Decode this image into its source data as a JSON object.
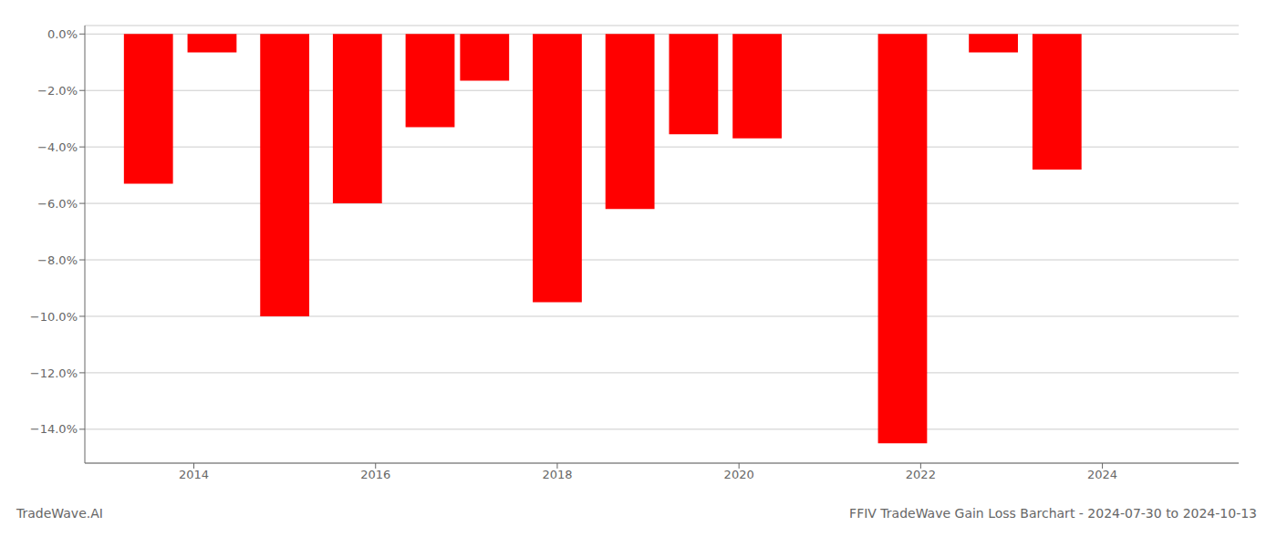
{
  "chart_data": {
    "type": "bar",
    "title": "FFIV TradeWave Gain Loss Barchart - 2024-07-30 to 2024-10-13",
    "annotations": [
      "TradeWave.AI"
    ],
    "x": [
      2013.5,
      2014.2,
      2015.0,
      2015.8,
      2016.6,
      2017.2,
      2018.0,
      2018.8,
      2019.5,
      2020.2,
      2021.8,
      2022.8,
      2023.5
    ],
    "values": [
      -5.3,
      -0.65,
      -10.0,
      -6.0,
      -3.3,
      -1.65,
      -9.5,
      -6.2,
      -3.55,
      -3.7,
      -14.5,
      -0.65,
      -4.8
    ],
    "color": "#ff0000",
    "xlim": [
      2012.8,
      2025.5
    ],
    "xticks": [
      2014,
      2016,
      2018,
      2020,
      2022,
      2024
    ],
    "ylim": [
      -15.2,
      0.3
    ],
    "yticks": [
      {
        "value": 0.0,
        "label": "0.0%"
      },
      {
        "value": -2.0,
        "label": "−2.0%"
      },
      {
        "value": -4.0,
        "label": "−4.0%"
      },
      {
        "value": -6.0,
        "label": "−6.0%"
      },
      {
        "value": -8.0,
        "label": "−8.0%"
      },
      {
        "value": -10.0,
        "label": "−10.0%"
      },
      {
        "value": -12.0,
        "label": "−12.0%"
      },
      {
        "value": -14.0,
        "label": "−14.0%"
      }
    ],
    "grid": true
  }
}
